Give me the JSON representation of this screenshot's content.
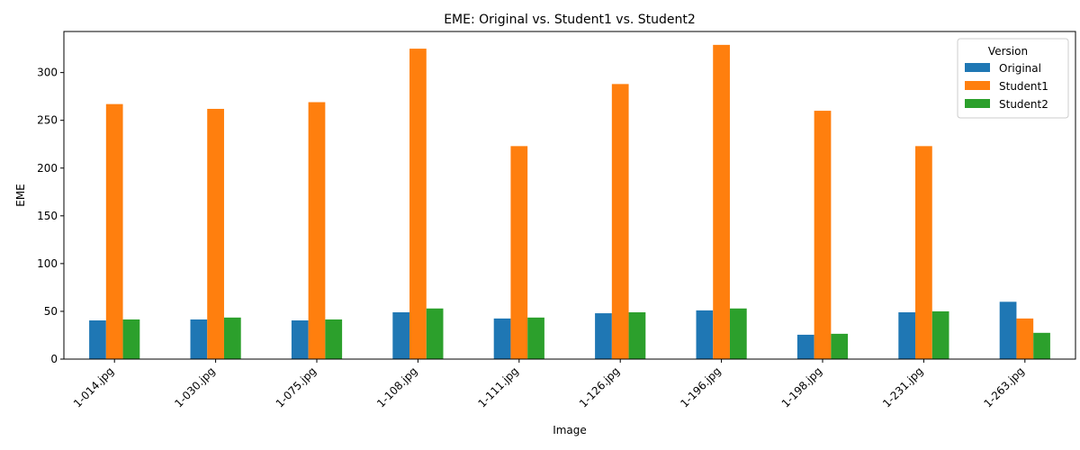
{
  "chart_data": {
    "type": "bar",
    "title": "EME: Original vs. Student1 vs. Student2",
    "xlabel": "Image",
    "ylabel": "EME",
    "ylim": [
      0,
      343
    ],
    "yticks": [
      0,
      50,
      100,
      150,
      200,
      250,
      300
    ],
    "grid": false,
    "legend": {
      "title": "Version",
      "placement": "top-right"
    },
    "categories": [
      "1-014.jpg",
      "1-030.jpg",
      "1-075.jpg",
      "1-108.jpg",
      "1-111.jpg",
      "1-126.jpg",
      "1-196.jpg",
      "1-198.jpg",
      "1-231.jpg",
      "1-263.jpg"
    ],
    "series": [
      {
        "name": "Original",
        "color": "#1f77b4",
        "values": [
          40.5,
          41.5,
          40.5,
          49,
          42.5,
          48,
          51,
          25.5,
          49,
          60
        ]
      },
      {
        "name": "Student1",
        "color": "#ff7f0e",
        "values": [
          267,
          262,
          269,
          325,
          223,
          288,
          329,
          260,
          223,
          42.5
        ]
      },
      {
        "name": "Student2",
        "color": "#2ca02c",
        "values": [
          41.5,
          43.5,
          41.5,
          53,
          43.5,
          49,
          53,
          26.5,
          50,
          27.5
        ]
      }
    ]
  }
}
